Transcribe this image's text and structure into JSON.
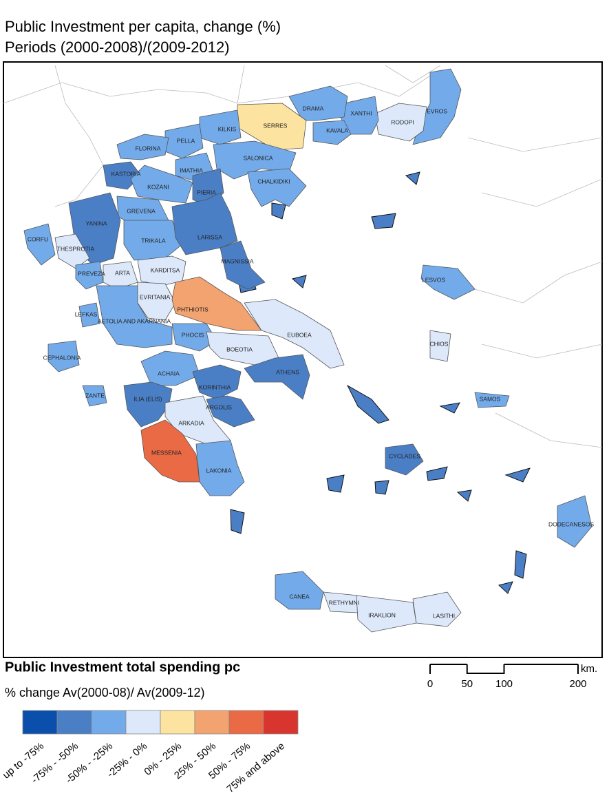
{
  "title": {
    "line1": "Public Investment per capita, change (%)",
    "line2": "Periods (2000-2008)/(2009-2012)"
  },
  "regions": [
    {
      "label": "EVROS",
      "color": "#73aae9"
    },
    {
      "label": "RODOPI",
      "color": "#dde9fa"
    },
    {
      "label": "XANTHI",
      "color": "#73aae9"
    },
    {
      "label": "DRAMA",
      "color": "#73aae9"
    },
    {
      "label": "KAVALA",
      "color": "#73aae9"
    },
    {
      "label": "SERRES",
      "color": "#fde3a0"
    },
    {
      "label": "KILKIS",
      "color": "#73aae9"
    },
    {
      "label": "PELLA",
      "color": "#73aae9"
    },
    {
      "label": "FLORINA",
      "color": "#73aae9"
    },
    {
      "label": "IMATHIA",
      "color": "#73aae9"
    },
    {
      "label": "SALONICA",
      "color": "#73aae9"
    },
    {
      "label": "CHALKIDIKI",
      "color": "#73aae9"
    },
    {
      "label": "KASTORIA",
      "color": "#4a7fc6"
    },
    {
      "label": "KOZANI",
      "color": "#73aae9"
    },
    {
      "label": "PIERIA",
      "color": "#4a7fc6"
    },
    {
      "label": "GREVENA",
      "color": "#73aae9"
    },
    {
      "label": "YANINA",
      "color": "#4a7fc6"
    },
    {
      "label": "CORFU",
      "color": "#73aae9"
    },
    {
      "label": "THESPROTIA",
      "color": "#dde9fa"
    },
    {
      "label": "TRIKALA",
      "color": "#73aae9"
    },
    {
      "label": "LARISSA",
      "color": "#4a7fc6"
    },
    {
      "label": "MAGNISSIA",
      "color": "#4a7fc6"
    },
    {
      "label": "KARDITSA",
      "color": "#dde9fa"
    },
    {
      "label": "PREVEZA",
      "color": "#73aae9"
    },
    {
      "label": "ARTA",
      "color": "#dde9fa"
    },
    {
      "label": "EVRITANIA",
      "color": "#dde9fa"
    },
    {
      "label": "PHTHIOTIS",
      "color": "#f3a36f"
    },
    {
      "label": "LEFKAS",
      "color": "#73aae9"
    },
    {
      "label": "AETOLIA AND AKARNANIA",
      "color": "#73aae9"
    },
    {
      "label": "PHOCIS",
      "color": "#73aae9"
    },
    {
      "label": "BOEOTIA",
      "color": "#dde9fa"
    },
    {
      "label": "EUBOEA",
      "color": "#dde9fa"
    },
    {
      "label": "CEPHALONIA",
      "color": "#73aae9"
    },
    {
      "label": "ZANTE",
      "color": "#73aae9"
    },
    {
      "label": "ACHAIA",
      "color": "#73aae9"
    },
    {
      "label": "ATHENS",
      "color": "#4a7fc6"
    },
    {
      "label": "KORINTHIA",
      "color": "#4a7fc6"
    },
    {
      "label": "ILIA (ELIS)",
      "color": "#4a7fc6"
    },
    {
      "label": "ARGOLIS",
      "color": "#4a7fc6"
    },
    {
      "label": "ARKADIA",
      "color": "#dde9fa"
    },
    {
      "label": "MESSENIA",
      "color": "#ea6a45"
    },
    {
      "label": "LAKONIA",
      "color": "#73aae9"
    },
    {
      "label": "CYCLADES",
      "color": "#4a7fc6"
    },
    {
      "label": "SAMOS",
      "color": "#73aae9"
    },
    {
      "label": "LESVOS",
      "color": "#73aae9"
    },
    {
      "label": "CHIOS",
      "color": "#dde9fa"
    },
    {
      "label": "DODECANESOS",
      "color": "#73aae9"
    },
    {
      "label": "CANEA",
      "color": "#73aae9"
    },
    {
      "label": "RETHYMNI",
      "color": "#dde9fa"
    },
    {
      "label": "IRAKLION",
      "color": "#dde9fa"
    },
    {
      "label": "LASITHI",
      "color": "#dde9fa"
    }
  ],
  "legend": {
    "title": "Public Investment total spending pc",
    "subtitle": "% change Av(2000-08)/ Av(2009-12)",
    "items": [
      {
        "label": "up to -75%",
        "color": "#0b4fad"
      },
      {
        "label": "-75% - -50%",
        "color": "#4a7fc6"
      },
      {
        "label": "-50% - -25%",
        "color": "#73aae9"
      },
      {
        "label": "-25% - 0%",
        "color": "#dde9fa"
      },
      {
        "label": "0% - 25%",
        "color": "#fde3a0"
      },
      {
        "label": "25% - 50%",
        "color": "#f3a36f"
      },
      {
        "label": "50% - 75%",
        "color": "#ea6a45"
      },
      {
        "label": "75% and above",
        "color": "#d9352f"
      }
    ]
  },
  "scale_bar": {
    "unit": "km.",
    "ticks": [
      0,
      50,
      100,
      200
    ]
  }
}
